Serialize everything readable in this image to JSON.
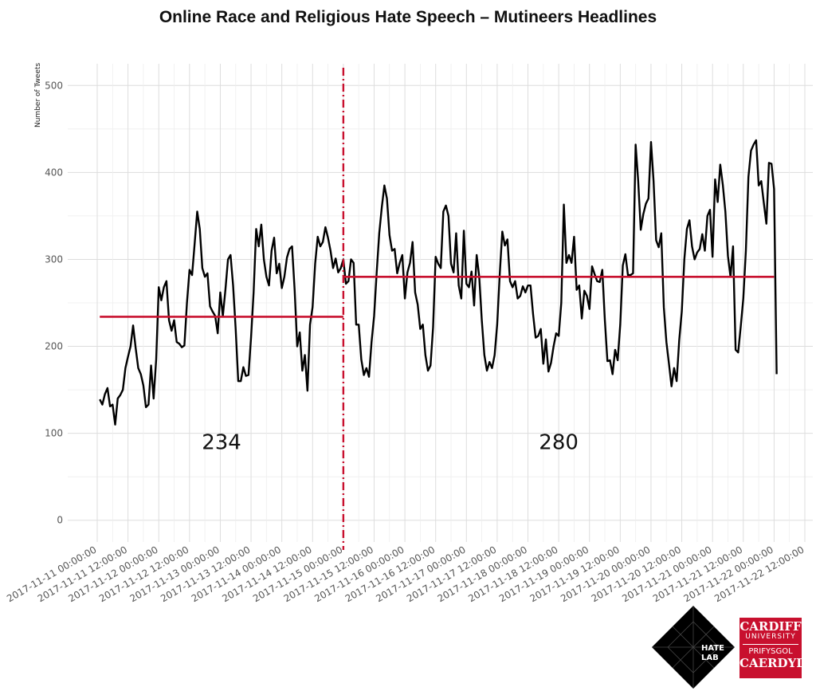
{
  "chart_data": {
    "type": "line",
    "title": "Online Race and Religious Hate Speech – Mutineers Headlines",
    "ylabel": "Number of Tweets",
    "xlabel": "",
    "ylim": [
      -25,
      525
    ],
    "y_ticks": [
      0,
      100,
      200,
      300,
      400,
      500
    ],
    "x_ticks": [
      "2017-11-11 00:00:00",
      "2017-11-11 12:00:00",
      "2017-11-12 00:00:00",
      "2017-11-12 12:00:00",
      "2017-11-13 00:00:00",
      "2017-11-13 12:00:00",
      "2017-11-14 00:00:00",
      "2017-11-14 12:00:00",
      "2017-11-15 00:00:00",
      "2017-11-15 12:00:00",
      "2017-11-16 00:00:00",
      "2017-11-16 12:00:00",
      "2017-11-17 00:00:00",
      "2017-11-17 12:00:00",
      "2017-11-18 00:00:00",
      "2017-11-18 12:00:00",
      "2017-11-19 00:00:00",
      "2017-11-19 12:00:00",
      "2017-11-20 00:00:00",
      "2017-11-20 12:00:00",
      "2017-11-21 00:00:00",
      "2017-11-21 12:00:00",
      "2017-11-22 00:00:00",
      "2017-11-22 12:00:00"
    ],
    "x_start": "2017-11-11 00:00:00",
    "x_step_hours": 1,
    "first_point_hour": 1,
    "grid": true,
    "series": [
      {
        "name": "",
        "color": "#000000",
        "values": [
          139,
          133,
          145,
          152,
          131,
          133,
          110,
          140,
          144,
          150,
          175,
          188,
          200,
          224,
          198,
          175,
          168,
          155,
          130,
          133,
          178,
          140,
          185,
          268,
          253,
          268,
          275,
          230,
          218,
          230,
          205,
          203,
          199,
          201,
          250,
          288,
          282,
          318,
          355,
          335,
          290,
          280,
          284,
          246,
          240,
          235,
          215,
          262,
          235,
          265,
          300,
          305,
          270,
          220,
          160,
          160,
          176,
          166,
          167,
          210,
          262,
          335,
          315,
          340,
          300,
          280,
          270,
          310,
          325,
          284,
          295,
          267,
          280,
          302,
          312,
          315,
          265,
          200,
          216,
          172,
          190,
          149,
          225,
          245,
          295,
          326,
          315,
          320,
          337,
          325,
          310,
          290,
          301,
          285,
          290,
          300,
          272,
          275,
          300,
          296,
          225,
          225,
          185,
          167,
          175,
          165,
          205,
          235,
          285,
          330,
          360,
          385,
          370,
          328,
          310,
          312,
          284,
          296,
          305,
          255,
          285,
          296,
          320,
          262,
          248,
          220,
          225,
          190,
          172,
          178,
          222,
          303,
          295,
          290,
          355,
          362,
          350,
          295,
          285,
          330,
          270,
          255,
          333,
          272,
          268,
          286,
          247,
          305,
          280,
          230,
          190,
          172,
          182,
          175,
          190,
          225,
          283,
          332,
          316,
          323,
          275,
          268,
          275,
          255,
          258,
          269,
          262,
          270,
          270,
          237,
          210,
          212,
          220,
          180,
          208,
          171,
          181,
          200,
          215,
          212,
          250,
          363,
          296,
          305,
          296,
          326,
          265,
          270,
          232,
          264,
          258,
          243,
          292,
          283,
          275,
          274,
          288,
          230,
          183,
          184,
          168,
          196,
          184,
          225,
          293,
          306,
          282,
          282,
          284,
          432,
          390,
          334,
          352,
          364,
          370,
          435,
          390,
          322,
          314,
          330,
          245,
          205,
          180,
          154,
          175,
          160,
          207,
          240,
          300,
          335,
          345,
          315,
          300,
          308,
          312,
          329,
          310,
          350,
          357,
          303,
          392,
          366,
          409,
          386,
          355,
          304,
          280,
          315,
          196,
          193,
          223,
          255,
          310,
          395,
          425,
          432,
          437,
          385,
          390,
          365,
          341,
          411,
          410,
          381,
          168
        ]
      }
    ],
    "event_line": {
      "x": "2017-11-15 00:00:00",
      "color": "#c8102e",
      "style": "dot-dash"
    },
    "means": [
      {
        "label": "234",
        "value": 234,
        "x_from": "2017-11-11 01:00:00",
        "x_to": "2017-11-15 00:00:00",
        "color": "#c8102e"
      },
      {
        "label": "280",
        "value": 280,
        "x_from": "2017-11-15 00:00:00",
        "x_to": "2017-11-22 00:00:00",
        "color": "#c8102e"
      }
    ]
  },
  "logos": {
    "hate_lab": {
      "line1": "HATE",
      "line2": "LAB"
    },
    "cardiff": {
      "line1": "CARDIFF",
      "line2": "UNIVERSITY",
      "line3": "PRIFYSGOL",
      "line4": "CAERDYDD"
    }
  }
}
